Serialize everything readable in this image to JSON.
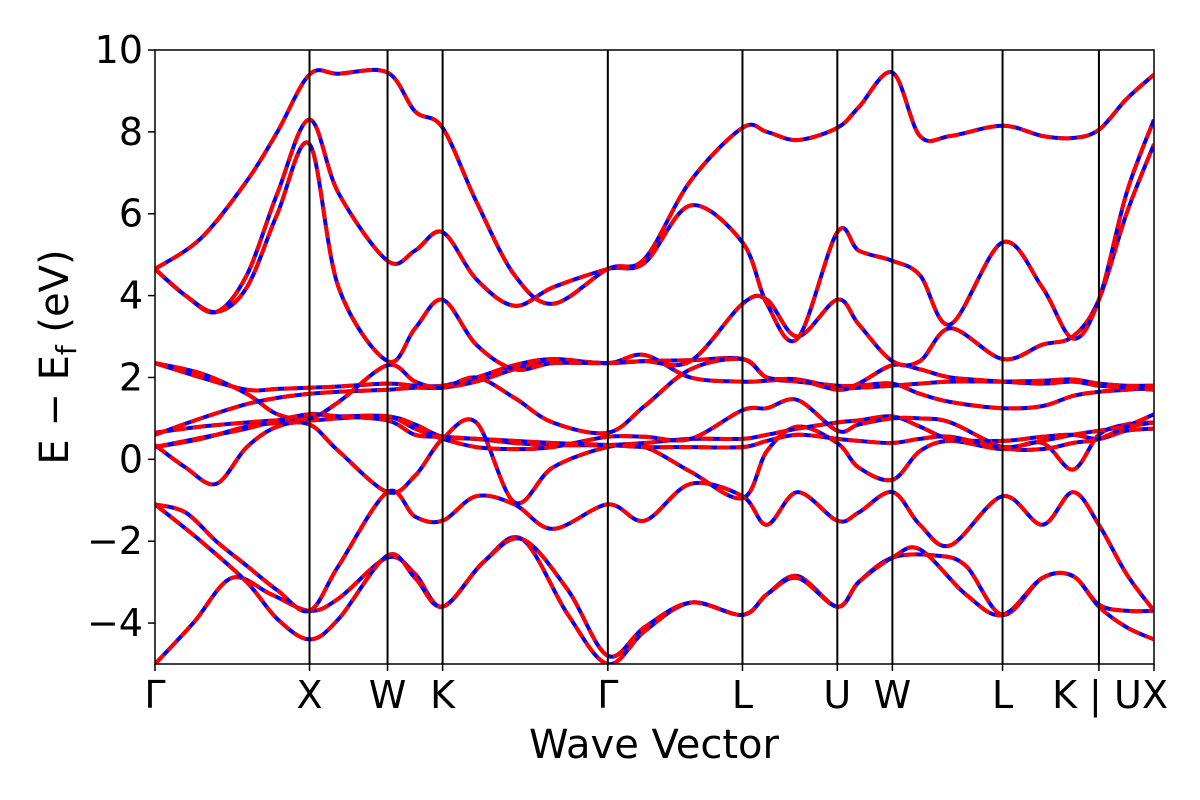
{
  "chart_data": {
    "type": "line",
    "xlabel": "Wave Vector",
    "ylabel": "E − E_f (eV)",
    "ylabel_parts": {
      "main": "E − E",
      "sub": "f",
      "unit": " (eV)"
    },
    "ylim": [
      -5,
      10
    ],
    "yticks": [
      "−4",
      "−2",
      "0",
      "2",
      "4",
      "6",
      "8",
      "10"
    ],
    "ytick_values": [
      -4,
      -2,
      0,
      2,
      4,
      6,
      8,
      10
    ],
    "x_range": [
      0,
      6.53
    ],
    "kpath": [
      {
        "label": "Γ",
        "x": 0.0
      },
      {
        "label": "X",
        "x": 1.01
      },
      {
        "label": "W",
        "x": 1.52
      },
      {
        "label": "K",
        "x": 1.88
      },
      {
        "label": "Γ",
        "x": 2.96
      },
      {
        "label": "L",
        "x": 3.84
      },
      {
        "label": "U",
        "x": 4.46
      },
      {
        "label": "W",
        "x": 4.82
      },
      {
        "label": "L",
        "x": 5.54
      },
      {
        "label": "K | U",
        "x": 6.17
      },
      {
        "label": "X",
        "x": 6.53
      }
    ],
    "grid": false,
    "styles": [
      {
        "role": "solid",
        "color": "#0000ff"
      },
      {
        "role": "dashed-overlay",
        "color": "#ff0000"
      }
    ],
    "series": [
      {
        "x": [
          0,
          0.25,
          0.5,
          0.76,
          1.01,
          1.2,
          1.52,
          1.7,
          1.88,
          2.15,
          2.4,
          2.7,
          2.96,
          3.2,
          3.5,
          3.84,
          4.0,
          4.2,
          4.46,
          4.6,
          4.82,
          5.1,
          5.3,
          5.54,
          5.8,
          6.0,
          6.17,
          6.35,
          6.53
        ],
        "y": [
          -5.0,
          -4.0,
          -2.9,
          -3.3,
          -3.7,
          -3.4,
          -2.4,
          -2.8,
          -3.6,
          -2.5,
          -1.95,
          -3.8,
          -5.0,
          -4.2,
          -3.5,
          -3.8,
          -3.3,
          -2.85,
          -3.6,
          -3.0,
          -2.4,
          -2.35,
          -2.6,
          -3.8,
          -2.9,
          -2.85,
          -3.55,
          -3.7,
          -3.7
        ]
      },
      {
        "x": [
          0,
          0.3,
          0.6,
          0.8,
          1.01,
          1.2,
          1.52,
          1.7,
          1.88,
          2.15,
          2.4,
          2.7,
          2.96,
          3.2,
          3.5,
          3.84,
          4.0,
          4.2,
          4.46,
          4.6,
          4.82,
          5.0,
          5.3,
          5.54,
          5.8,
          6.0,
          6.17,
          6.35,
          6.53
        ],
        "y": [
          -1.1,
          -2.0,
          -3.0,
          -3.9,
          -4.4,
          -3.9,
          -2.35,
          -2.9,
          -3.6,
          -2.5,
          -1.95,
          -3.2,
          -4.8,
          -4.1,
          -3.5,
          -3.8,
          -3.3,
          -2.9,
          -3.6,
          -3.0,
          -2.4,
          -2.2,
          -3.3,
          -3.8,
          -2.9,
          -2.85,
          -3.6,
          -4.1,
          -4.4
        ]
      },
      {
        "x": [
          0,
          0.2,
          0.4,
          0.6,
          0.8,
          1.01,
          1.2,
          1.52,
          1.7,
          1.88,
          2.1,
          2.35,
          2.6,
          2.96,
          3.2,
          3.5,
          3.84,
          4.0,
          4.2,
          4.46,
          4.6,
          4.82,
          5.0,
          5.2,
          5.54,
          5.8,
          6.0,
          6.17,
          6.35,
          6.53
        ],
        "y": [
          -1.1,
          -1.3,
          -2.0,
          -2.6,
          -3.2,
          -3.7,
          -2.6,
          -0.8,
          -1.4,
          -1.5,
          -0.9,
          -1.1,
          -1.7,
          -1.1,
          -1.5,
          -0.6,
          -0.9,
          -1.6,
          -0.8,
          -1.5,
          -1.3,
          -0.8,
          -1.6,
          -2.1,
          -0.9,
          -1.6,
          -0.8,
          -1.6,
          -2.8,
          -3.7
        ]
      },
      {
        "x": [
          0,
          0.2,
          0.4,
          0.6,
          0.8,
          1.01,
          1.2,
          1.52,
          1.7,
          1.88,
          2.1,
          2.35,
          2.6,
          2.96,
          3.2,
          3.5,
          3.84,
          4.0,
          4.2,
          4.46,
          4.6,
          4.82,
          5.0,
          5.2,
          5.54,
          5.8,
          6.0,
          6.17,
          6.35,
          6.53
        ],
        "y": [
          0.35,
          -0.2,
          -0.6,
          0.3,
          0.8,
          0.85,
          0.2,
          -0.8,
          -0.4,
          0.5,
          0.9,
          -1.05,
          -0.2,
          0.3,
          0.3,
          -0.3,
          -0.95,
          0.2,
          0.8,
          0.4,
          -0.2,
          -0.5,
          0.2,
          0.45,
          0.25,
          0.4,
          -0.25,
          0.6,
          0.85,
          0.9
        ]
      },
      {
        "x": [
          0,
          0.3,
          0.6,
          0.8,
          1.01,
          1.2,
          1.52,
          1.7,
          1.88,
          2.1,
          2.35,
          2.6,
          2.96,
          3.2,
          3.5,
          3.84,
          4.0,
          4.2,
          4.46,
          4.6,
          4.82,
          5.0,
          5.2,
          5.54,
          5.8,
          6.0,
          6.17,
          6.35,
          6.53
        ],
        "y": [
          0.65,
          0.8,
          0.9,
          0.95,
          0.95,
          1.0,
          1.05,
          0.85,
          0.55,
          0.5,
          0.4,
          0.35,
          0.35,
          0.4,
          0.5,
          0.5,
          0.6,
          0.75,
          0.9,
          0.95,
          1.05,
          0.8,
          0.5,
          0.45,
          0.55,
          0.6,
          0.5,
          0.7,
          0.75
        ]
      },
      {
        "x": [
          0,
          0.3,
          0.6,
          0.8,
          1.01,
          1.2,
          1.52,
          1.7,
          1.88,
          2.1,
          2.35,
          2.6,
          2.96,
          3.2,
          3.5,
          3.84,
          4.0,
          4.2,
          4.46,
          4.6,
          4.82,
          5.0,
          5.2,
          5.54,
          5.8,
          6.0,
          6.17,
          6.35,
          6.53
        ],
        "y": [
          0.3,
          0.5,
          0.8,
          0.9,
          1.1,
          1.05,
          1.05,
          0.75,
          0.5,
          0.3,
          0.25,
          0.3,
          0.55,
          0.55,
          0.5,
          1.2,
          1.25,
          1.45,
          0.7,
          0.85,
          1.0,
          1.0,
          0.9,
          0.3,
          0.25,
          0.4,
          0.5,
          0.8,
          1.1
        ]
      },
      {
        "x": [
          0,
          0.3,
          0.6,
          0.8,
          1.01,
          1.2,
          1.52,
          1.7,
          1.88,
          2.1,
          2.35,
          2.6,
          2.96,
          3.2,
          3.5,
          3.84,
          4.0,
          4.2,
          4.46,
          4.6,
          4.82,
          5.0,
          5.2,
          5.54,
          5.8,
          6.0,
          6.17,
          6.35,
          6.53
        ],
        "y": [
          0.6,
          1.0,
          1.35,
          1.5,
          1.6,
          1.65,
          1.7,
          1.75,
          1.75,
          1.9,
          2.2,
          2.4,
          2.35,
          2.4,
          2.42,
          2.45,
          2.0,
          1.9,
          1.8,
          1.8,
          1.85,
          1.6,
          1.4,
          1.25,
          1.3,
          1.55,
          1.65,
          1.7,
          1.75
        ]
      },
      {
        "x": [
          0,
          0.3,
          0.6,
          0.8,
          1.01,
          1.2,
          1.52,
          1.7,
          1.88,
          2.1,
          2.35,
          2.6,
          2.96,
          3.2,
          3.5,
          3.84,
          4.0,
          4.2,
          4.46,
          4.6,
          4.82,
          5.0,
          5.2,
          5.54,
          5.8,
          6.0,
          6.17,
          6.35,
          6.53
        ],
        "y": [
          2.35,
          2.0,
          1.7,
          1.72,
          1.75,
          1.78,
          1.85,
          1.8,
          1.8,
          2.0,
          2.3,
          2.45,
          2.35,
          2.55,
          2.0,
          1.9,
          1.92,
          1.95,
          1.75,
          1.75,
          1.8,
          1.85,
          1.9,
          1.9,
          1.92,
          1.95,
          1.85,
          1.8,
          1.8
        ]
      },
      {
        "x": [
          0,
          0.3,
          0.6,
          0.8,
          1.01,
          1.2,
          1.52,
          1.7,
          1.88,
          2.1,
          2.35,
          2.6,
          2.96,
          3.2,
          3.5,
          3.84,
          4.0,
          4.2,
          4.46,
          4.6,
          4.82,
          5.0,
          5.2,
          5.54,
          5.8,
          6.0,
          6.17,
          6.35,
          6.53
        ],
        "y": [
          2.35,
          2.1,
          1.6,
          1.1,
          1.0,
          1.4,
          2.3,
          1.9,
          1.75,
          2.0,
          1.5,
          0.9,
          0.65,
          1.3,
          2.2,
          2.45,
          2.0,
          1.95,
          1.7,
          1.85,
          2.3,
          2.2,
          2.0,
          1.9,
          1.85,
          1.9,
          1.8,
          1.75,
          1.7
        ]
      },
      {
        "x": [
          0,
          0.2,
          0.4,
          0.6,
          0.8,
          1.01,
          1.2,
          1.52,
          1.7,
          1.88,
          2.1,
          2.35,
          2.6,
          2.96,
          3.2,
          3.5,
          3.84,
          4.0,
          4.2,
          4.46,
          4.6,
          4.82,
          5.0,
          5.2,
          5.54,
          5.8,
          6.0,
          6.17,
          6.35,
          6.53
        ],
        "y": [
          4.65,
          4.0,
          3.6,
          4.2,
          6.0,
          7.7,
          4.2,
          2.4,
          3.2,
          3.9,
          2.8,
          2.2,
          2.35,
          2.35,
          2.4,
          2.4,
          3.8,
          3.9,
          3.0,
          3.9,
          3.3,
          2.4,
          2.4,
          3.2,
          2.45,
          2.8,
          3.0,
          3.9,
          6.0,
          7.7
        ]
      },
      {
        "x": [
          0,
          0.2,
          0.4,
          0.6,
          0.8,
          1.01,
          1.2,
          1.52,
          1.7,
          1.88,
          2.1,
          2.35,
          2.6,
          2.96,
          3.2,
          3.5,
          3.84,
          4.0,
          4.2,
          4.46,
          4.6,
          4.82,
          5.0,
          5.2,
          5.54,
          5.8,
          6.0,
          6.17,
          6.35,
          6.53
        ],
        "y": [
          4.65,
          4.0,
          3.6,
          4.5,
          6.5,
          8.3,
          6.5,
          4.85,
          5.1,
          5.55,
          4.4,
          3.75,
          4.2,
          4.65,
          4.8,
          6.2,
          5.3,
          3.8,
          2.95,
          5.55,
          5.1,
          4.85,
          4.5,
          3.3,
          5.3,
          4.2,
          2.95,
          3.9,
          6.5,
          8.3
        ]
      },
      {
        "x": [
          0,
          0.3,
          0.6,
          0.8,
          1.01,
          1.2,
          1.52,
          1.7,
          1.88,
          2.1,
          2.35,
          2.6,
          2.96,
          3.2,
          3.5,
          3.84,
          4.0,
          4.2,
          4.46,
          4.6,
          4.82,
          5.0,
          5.2,
          5.54,
          5.8,
          6.0,
          6.17,
          6.35,
          6.53
        ],
        "y": [
          4.65,
          5.4,
          6.8,
          8.0,
          9.4,
          9.42,
          9.45,
          8.5,
          8.1,
          6.3,
          4.5,
          3.8,
          4.65,
          4.9,
          6.8,
          8.1,
          8.0,
          7.8,
          8.1,
          8.6,
          9.45,
          7.9,
          7.9,
          8.15,
          7.9,
          7.85,
          8.05,
          8.8,
          9.4
        ]
      },
      {
        "x": [
          0,
          0.2,
          0.4,
          0.6,
          0.8,
          1.01,
          1.2,
          1.52,
          1.7,
          1.88,
          2.1,
          2.35,
          2.6,
          2.96,
          3.2,
          3.5,
          3.84,
          4.0,
          4.2,
          4.46,
          4.6,
          4.82,
          5.0,
          5.2,
          5.54,
          5.8,
          6.0,
          6.17,
          6.35,
          6.53
        ],
        "y": [
          0.3,
          0.45,
          0.6,
          0.75,
          0.95,
          1.1,
          1.05,
          0.95,
          0.6,
          0.55,
          0.5,
          0.45,
          0.4,
          0.35,
          0.3,
          0.3,
          0.3,
          0.45,
          0.6,
          0.5,
          0.45,
          0.4,
          0.5,
          0.55,
          0.3,
          0.45,
          0.6,
          0.7,
          0.8,
          0.9
        ]
      }
    ]
  }
}
